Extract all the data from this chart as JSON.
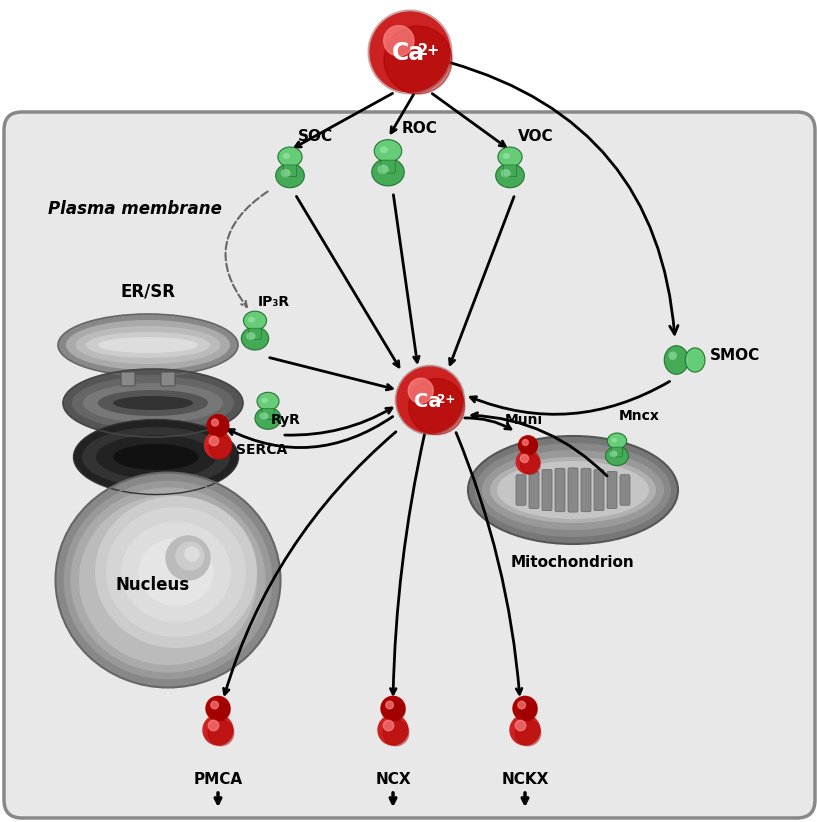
{
  "bg_color": "#ffffff",
  "cell_bg": "#e8e8e8",
  "cell_border": "#aaaaaa",
  "red_dark": "#aa0000",
  "red_mid": "#cc2222",
  "red_light": "#ee4444",
  "red_highlight": "#ff8888",
  "green_dark": "#227733",
  "green_mid": "#44aa55",
  "green_light": "#66cc77",
  "green_highlight": "#aaeebb",
  "black": "#000000",
  "gray_dark": "#444444",
  "gray_mid": "#888888",
  "gray_light": "#bbbbbb",
  "gray_lighter": "#cccccc",
  "gray_lightest": "#dddddd",
  "plasma_membrane_label": "Plasma membrane",
  "er_sr_label": "ER/SR",
  "nucleus_label": "Nucleus",
  "soc_label": "SOC",
  "roc_label": "ROC",
  "voc_label": "VOC",
  "smoc_label": "SMOC",
  "ip3r_label": "IP₃R",
  "ryr_label": "RyR",
  "serca_label": "SERCA",
  "muni_label": "Muni",
  "mncx_label": "Mncx",
  "mito_label": "Mitochondrion",
  "pmca_label": "PMCA",
  "ncx_label": "NCX",
  "nckx_label": "NCKX"
}
